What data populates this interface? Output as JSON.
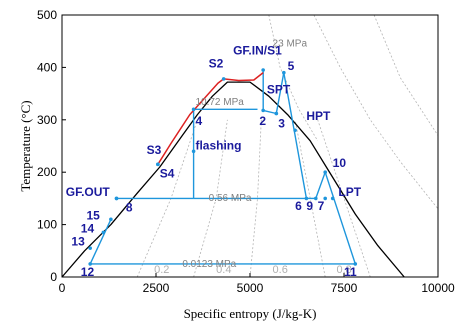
{
  "chart_data": {
    "type": "line",
    "xlabel": "Specific entropy (J/kg-K)",
    "ylabel": "Temperature (°C)",
    "xlim": [
      0,
      10000
    ],
    "ylim": [
      0,
      500
    ],
    "x_ticks": [
      "0",
      "2500",
      "5000",
      "7500",
      "10000"
    ],
    "y_ticks": [
      "0",
      "100",
      "200",
      "300",
      "400",
      "500"
    ],
    "grid": false,
    "series": [
      {
        "role": "saturation-dome",
        "color": "#000000",
        "points": [
          [
            0,
            0
          ],
          [
            600,
            50
          ],
          [
            1300,
            100
          ],
          [
            2000,
            160
          ],
          [
            2600,
            210
          ],
          [
            3200,
            270
          ],
          [
            3600,
            310
          ],
          [
            4000,
            345
          ],
          [
            4400,
            372
          ],
          [
            5000,
            372
          ],
          [
            5500,
            345
          ],
          [
            6000,
            310
          ],
          [
            6600,
            260
          ],
          [
            7200,
            190
          ],
          [
            7800,
            120
          ],
          [
            8400,
            60
          ],
          [
            9100,
            0
          ]
        ]
      },
      {
        "role": "red-curve",
        "color": "#dd2222",
        "points": [
          [
            2550,
            215
          ],
          [
            2900,
            255
          ],
          [
            3400,
            310
          ],
          [
            3900,
            350
          ],
          [
            4150,
            370
          ],
          [
            4300,
            378
          ],
          [
            4700,
            375
          ],
          [
            5100,
            376
          ],
          [
            5350,
            390
          ]
        ]
      },
      {
        "role": "process-lines",
        "color": "#1e96dc",
        "segments": [
          [
            [
              5350,
              395
            ],
            [
              5350,
              318
            ]
          ],
          [
            [
              5350,
              318
            ],
            [
              5700,
              312
            ]
          ],
          [
            [
              5700,
              312
            ],
            [
              5900,
              390
            ]
          ],
          [
            [
              5900,
              390
            ],
            [
              6500,
              150
            ]
          ],
          [
            [
              6500,
              150
            ],
            [
              6750,
              150
            ]
          ],
          [
            [
              6750,
              150
            ],
            [
              7000,
              200
            ]
          ],
          [
            [
              7000,
              200
            ],
            [
              7800,
              25
            ]
          ],
          [
            [
              3500,
              320
            ],
            [
              3500,
              150
            ]
          ],
          [
            [
              3500,
              150
            ],
            [
              1450,
              150
            ]
          ],
          [
            [
              3500,
              150
            ],
            [
              6500,
              150
            ]
          ],
          [
            [
              3500,
              320
            ],
            [
              5200,
              320
            ]
          ],
          [
            [
              750,
              25
            ],
            [
              7800,
              25
            ]
          ],
          [
            [
              750,
              25
            ],
            [
              1300,
              110
            ]
          ]
        ]
      },
      {
        "role": "isobars-and-quality",
        "color": "#b4b4b4",
        "lines": [
          [
            [
              5500,
              500
            ],
            [
              5800,
              400
            ],
            [
              6300,
              320
            ],
            [
              6800,
              260
            ]
          ],
          [
            [
              2000,
              0
            ],
            [
              2900,
              150
            ],
            [
              3600,
              300
            ]
          ],
          [
            [
              3500,
              0
            ],
            [
              4100,
              150
            ],
            [
              4400,
              300
            ]
          ],
          [
            [
              5000,
              0
            ],
            [
              5200,
              150
            ],
            [
              5300,
              300
            ]
          ],
          [
            [
              7000,
              0
            ],
            [
              6600,
              150
            ],
            [
              6200,
              300
            ]
          ],
          [
            [
              8200,
              0
            ],
            [
              7500,
              150
            ],
            [
              6800,
              300
            ]
          ],
          [
            [
              6700,
              500
            ],
            [
              7400,
              400
            ],
            [
              8200,
              300
            ],
            [
              9000,
              220
            ],
            [
              10000,
              130
            ]
          ],
          [
            [
              8300,
              500
            ],
            [
              9000,
              380
            ],
            [
              10000,
              270
            ]
          ]
        ]
      }
    ],
    "state_points": [
      {
        "label": "GF.IN/S1",
        "x": 5350,
        "y": 395,
        "label_pos": [
          4550,
          425
        ]
      },
      {
        "label": "S2",
        "x": 4300,
        "y": 378,
        "label_pos": [
          3900,
          400
        ]
      },
      {
        "label": "S3",
        "x": 2550,
        "y": 215,
        "label_pos": [
          2250,
          235
        ]
      },
      {
        "label": "S4",
        "x": 2550,
        "y": 215,
        "label_pos": [
          2600,
          190
        ]
      },
      {
        "label": "SPT",
        "x": 5700,
        "y": 312,
        "label_pos": [
          5450,
          350
        ]
      },
      {
        "label": "5",
        "x": 5900,
        "y": 390,
        "label_pos": [
          6000,
          395
        ]
      },
      {
        "label": "2",
        "x": 5350,
        "y": 318,
        "label_pos": [
          5250,
          290
        ]
      },
      {
        "label": "3",
        "x": 5700,
        "y": 312,
        "label_pos": [
          5750,
          285
        ]
      },
      {
        "label": "4",
        "x": 3500,
        "y": 320,
        "label_pos": [
          3550,
          290
        ]
      },
      {
        "label": "HPT",
        "x": 6200,
        "y": 280,
        "label_pos": [
          6500,
          300
        ]
      },
      {
        "label": "flashing",
        "x": 3500,
        "y": 240,
        "label_pos": [
          3550,
          243
        ]
      },
      {
        "label": "10",
        "x": 7000,
        "y": 200,
        "label_pos": [
          7200,
          210
        ]
      },
      {
        "label": "LPT",
        "x": 7200,
        "y": 150,
        "label_pos": [
          7350,
          155
        ]
      },
      {
        "label": "6",
        "x": 6500,
        "y": 150,
        "label_pos": [
          6200,
          128
        ]
      },
      {
        "label": "9",
        "x": 6750,
        "y": 150,
        "label_pos": [
          6500,
          128
        ]
      },
      {
        "label": "7",
        "x": 7000,
        "y": 150,
        "label_pos": [
          6800,
          128
        ]
      },
      {
        "label": "GF.OUT",
        "x": 1450,
        "y": 150,
        "label_pos": [
          100,
          155
        ]
      },
      {
        "label": "8",
        "x": 1450,
        "y": 150,
        "label_pos": [
          1700,
          125
        ]
      },
      {
        "label": "15",
        "x": 1300,
        "y": 110,
        "label_pos": [
          650,
          110
        ]
      },
      {
        "label": "14",
        "x": 1100,
        "y": 85,
        "label_pos": [
          500,
          85
        ]
      },
      {
        "label": "13",
        "x": 750,
        "y": 55,
        "label_pos": [
          250,
          60
        ]
      },
      {
        "label": "12",
        "x": 750,
        "y": 25,
        "label_pos": [
          500,
          2
        ]
      },
      {
        "label": "11",
        "x": 7800,
        "y": 25,
        "label_pos": [
          7500,
          2
        ]
      }
    ],
    "isobar_labels": [
      {
        "text": "23 MPa",
        "x": 5600,
        "y": 440
      },
      {
        "text": "10.72 MPa",
        "x": 3550,
        "y": 328
      },
      {
        "text": "0.56 MPa",
        "x": 3900,
        "y": 145
      },
      {
        "text": "0.0123 MPa",
        "x": 3200,
        "y": 19
      }
    ],
    "quality_labels": [
      {
        "text": "0.2",
        "x": 2450,
        "y": 2
      },
      {
        "text": "0.4",
        "x": 4100,
        "y": 2
      },
      {
        "text": "0.6",
        "x": 5600,
        "y": 2
      },
      {
        "text": "0.8",
        "x": 7300,
        "y": 2
      }
    ]
  }
}
